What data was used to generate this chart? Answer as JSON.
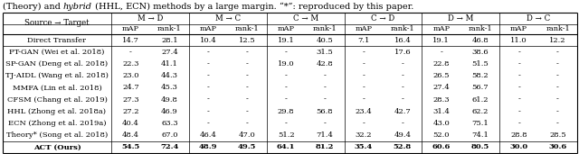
{
  "col_groups": [
    "M → D",
    "M → C",
    "C → M",
    "C → D",
    "D → M",
    "D → C"
  ],
  "sub_cols": [
    "mAP",
    "rank-1"
  ],
  "row_header": "Source → Target",
  "rows": [
    [
      "Direct Transfer",
      "14.7",
      "28.1",
      "10.4",
      "12.5",
      "19.1",
      "40.5",
      "7.1",
      "16.4",
      "19.1",
      "46.8",
      "11.0",
      "12.2"
    ],
    [
      "PT-GAN (Wei et al. 2018)",
      "-",
      "27.4",
      "-",
      "-",
      "-",
      "31.5",
      "-",
      "17.6",
      "-",
      "38.6",
      "-",
      "-"
    ],
    [
      "SP-GAN (Deng et al. 2018)",
      "22.3",
      "41.1",
      "-",
      "-",
      "19.0",
      "42.8",
      "-",
      "-",
      "22.8",
      "51.5",
      "-",
      "-"
    ],
    [
      "TJ-AIDL (Wang et al. 2018)",
      "23.0",
      "44.3",
      "-",
      "-",
      "-",
      "-",
      "-",
      "-",
      "26.5",
      "58.2",
      "-",
      "-"
    ],
    [
      "MMFA (Lin et al. 2018)",
      "24.7",
      "45.3",
      "-",
      "-",
      "-",
      "-",
      "-",
      "-",
      "27.4",
      "56.7",
      "-",
      "-"
    ],
    [
      "CFSM (Chang et al. 2019)",
      "27.3",
      "49.8",
      "-",
      "-",
      "-",
      "-",
      "-",
      "-",
      "28.3",
      "61.2",
      "-",
      "-"
    ],
    [
      "HHL (Zhong et al. 2018a)",
      "27.2",
      "46.9",
      "-",
      "-",
      "29.8",
      "56.8",
      "23.4",
      "42.7",
      "31.4",
      "62.2",
      "-",
      "-"
    ],
    [
      "ECN (Zhong et al. 2019a)",
      "40.4",
      "63.3",
      "-",
      "-",
      "-",
      "-",
      "-",
      "-",
      "43.0",
      "75.1",
      "-",
      "-"
    ],
    [
      "Theory* (Song et al. 2018)",
      "48.4",
      "67.0",
      "46.4",
      "47.0",
      "51.2",
      "71.4",
      "32.2",
      "49.4",
      "52.0",
      "74.1",
      "28.8",
      "28.5"
    ],
    [
      "ACT (Ours)",
      "54.5",
      "72.4",
      "48.9",
      "49.5",
      "64.1",
      "81.2",
      "35.4",
      "52.8",
      "60.6",
      "80.5",
      "30.0",
      "30.6"
    ]
  ],
  "bold_row": 9,
  "background_color": "#ffffff",
  "caption_pre": "(Theory) and ",
  "caption_italic": "hybrid",
  "caption_post": " (HHL, ECN) methods by a large margin. “*”: reproduced by this paper.",
  "font_size_caption": 7.0,
  "font_size_header": 6.2,
  "font_size_data": 6.0
}
